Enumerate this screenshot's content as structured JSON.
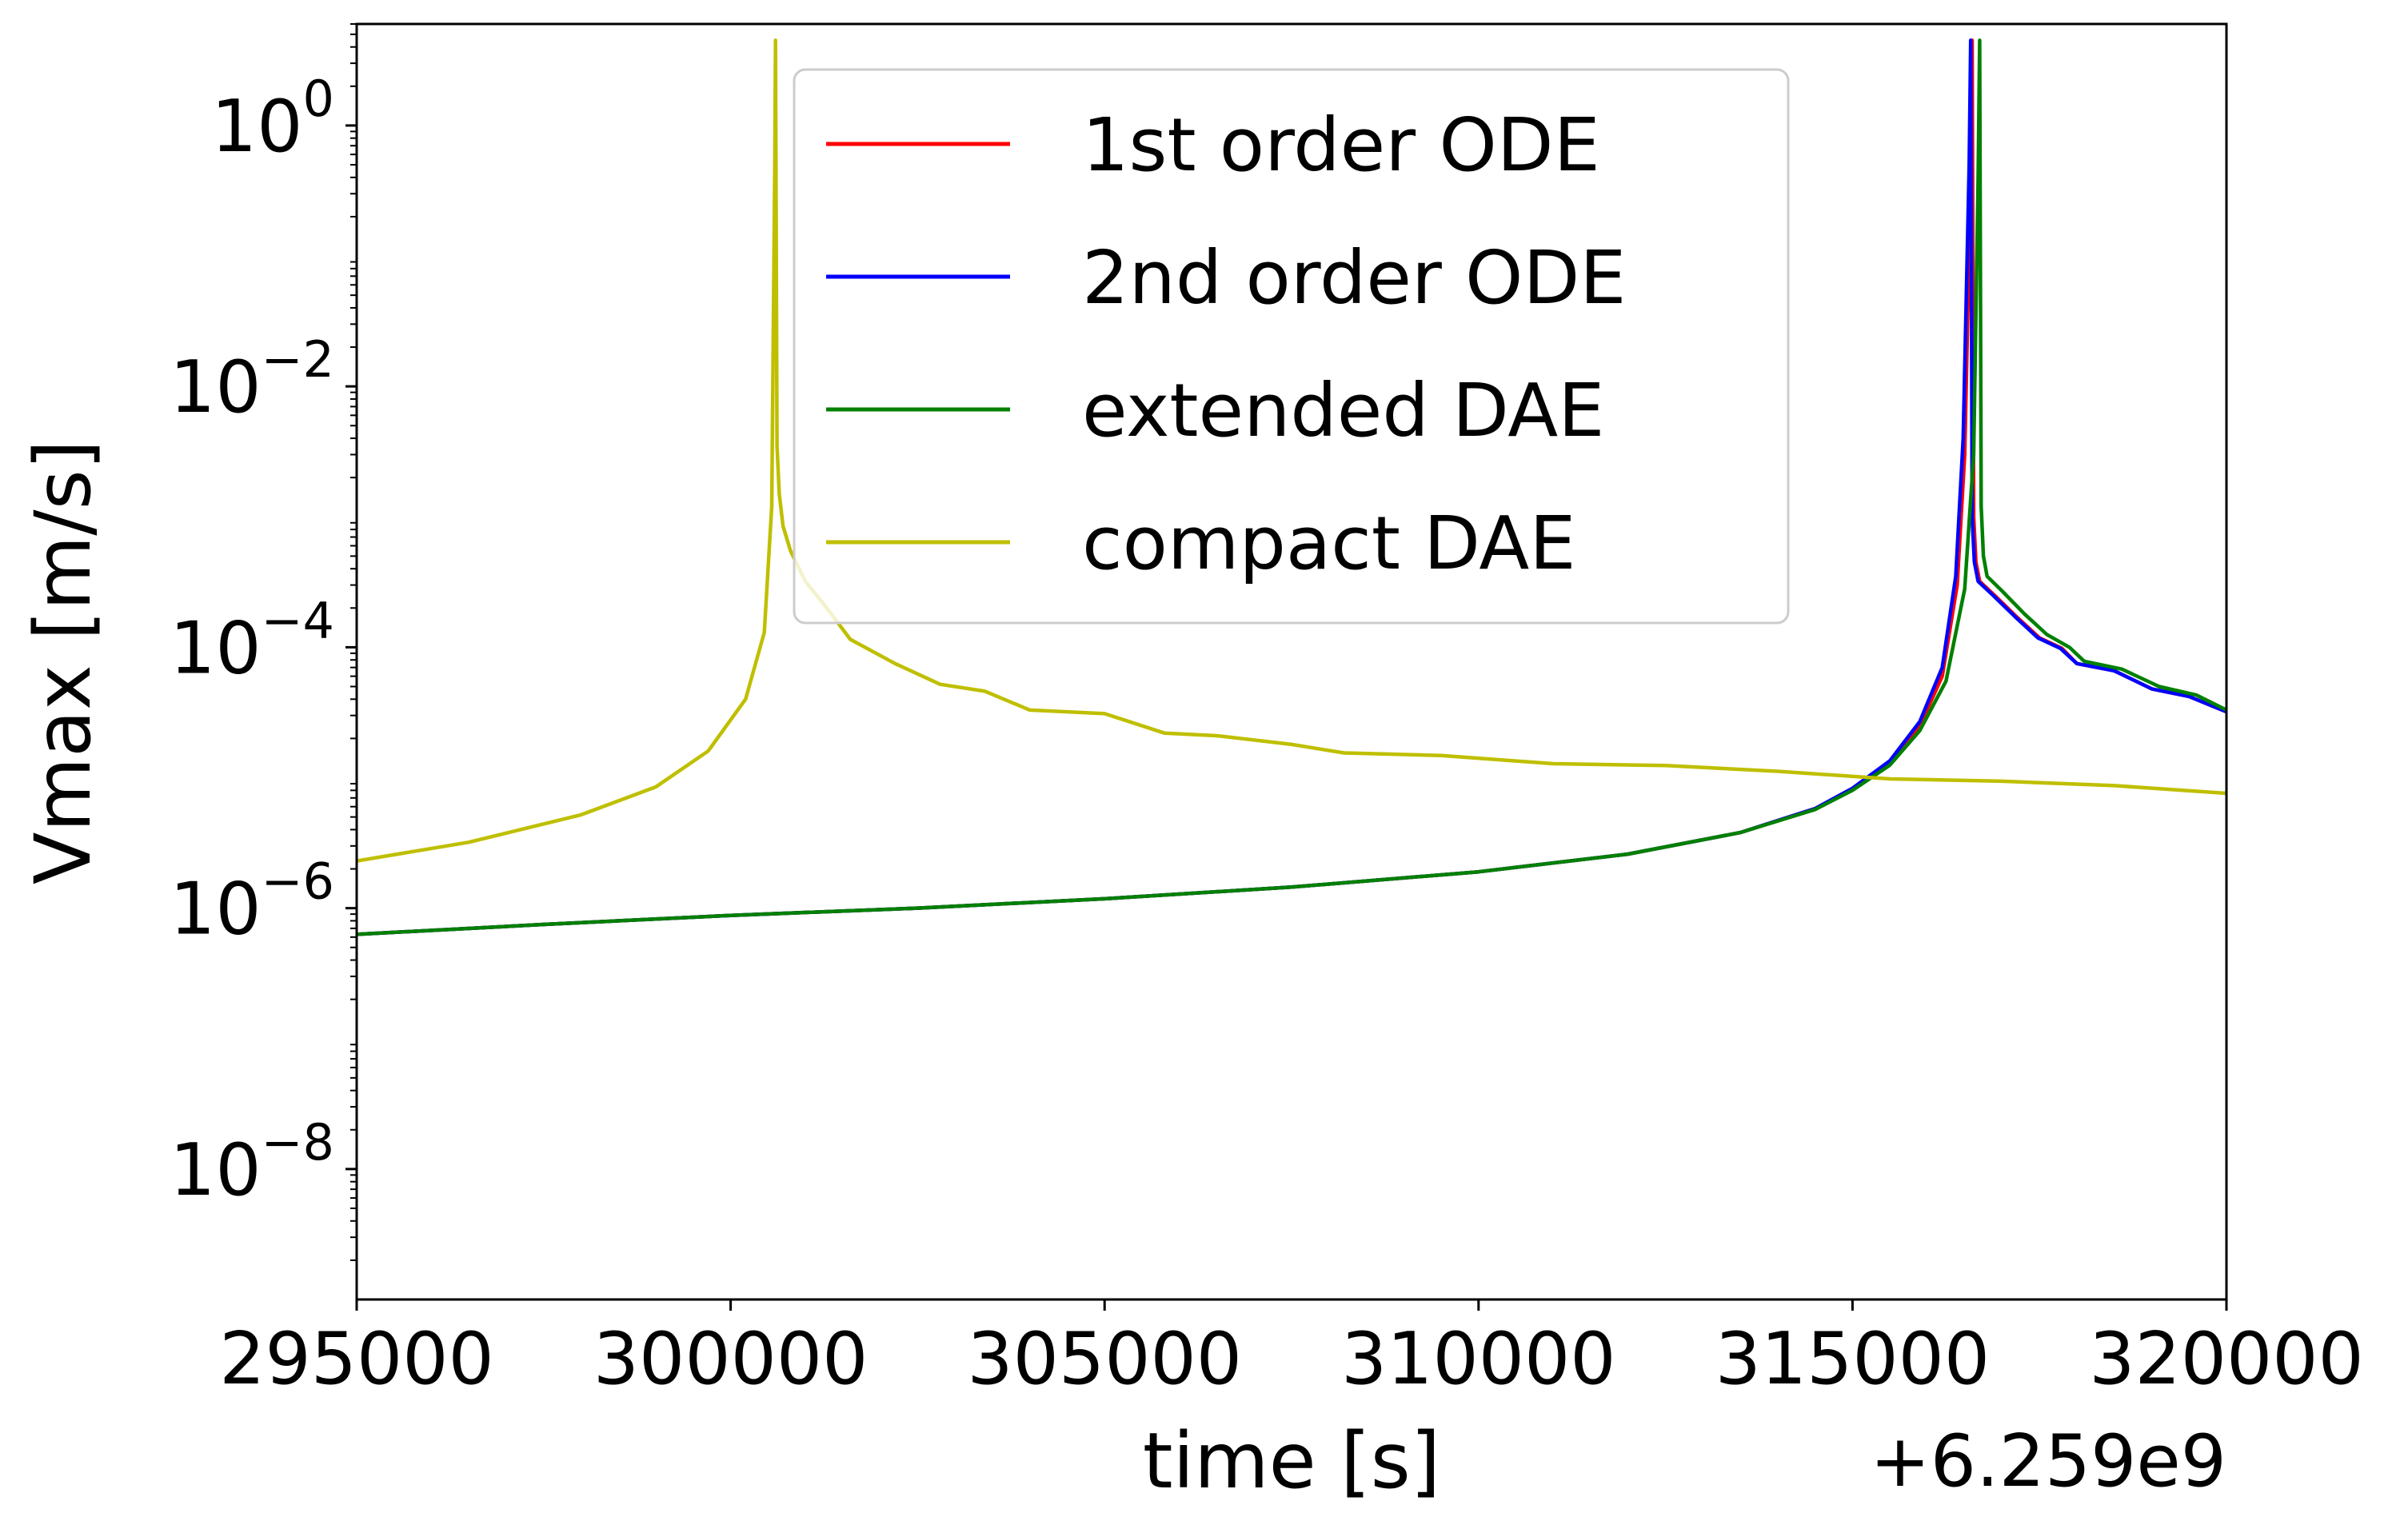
{
  "chart_data": {
    "type": "line",
    "title": "",
    "xlabel": "time [s]",
    "ylabel": "Vmax [m/s]",
    "x_offset_label": "+6.259e9",
    "x_offset": 6259000000,
    "xlim": [
      295000,
      320000
    ],
    "ylim": [
      1e-09,
      6
    ],
    "yscale": "log",
    "grid": false,
    "legend_position": "upper center",
    "x_ticks": [
      {
        "value": 295000,
        "label": "295000"
      },
      {
        "value": 300000,
        "label": "300000"
      },
      {
        "value": 305000,
        "label": "305000"
      },
      {
        "value": 310000,
        "label": "310000"
      },
      {
        "value": 315000,
        "label": "315000"
      },
      {
        "value": 320000,
        "label": "320000"
      }
    ],
    "y_ticks": [
      {
        "value": 1,
        "base": "10",
        "exponent": "0"
      },
      {
        "value": 0.01,
        "base": "10",
        "exponent": "−2"
      },
      {
        "value": 0.0001,
        "base": "10",
        "exponent": "−4"
      },
      {
        "value": 1e-06,
        "base": "10",
        "exponent": "−6"
      },
      {
        "value": 1e-08,
        "base": "10",
        "exponent": "−8"
      }
    ],
    "series": [
      {
        "name": "1st order ODE",
        "color": "#ff0000",
        "x": [
          295000,
          297500,
          300000,
          302500,
          305000,
          307500,
          310000,
          312000,
          313500,
          314500,
          315000,
          315500,
          315900,
          316200,
          316400,
          316500,
          316580,
          316600,
          316620,
          316650,
          316700,
          316900,
          317200,
          317500,
          317800,
          318000,
          318500,
          319000,
          319500,
          320000
        ],
        "y": [
          6.3e-07,
          7.5e-07,
          8.8e-07,
          1e-06,
          1.18e-06,
          1.45e-06,
          1.9e-06,
          2.6e-06,
          3.8e-06,
          5.8e-06,
          8.2e-06,
          1.3e-05,
          2.5e-05,
          6e-05,
          0.0003,
          0.003,
          0.4,
          4.5,
          0.001,
          0.00045,
          0.00032,
          0.00025,
          0.00017,
          0.000118,
          9.8e-05,
          7.5e-05,
          6.6e-05,
          4.8e-05,
          4.2e-05,
          3.2e-05
        ]
      },
      {
        "name": "2nd order ODE",
        "color": "#0000ff",
        "x": [
          295000,
          297500,
          300000,
          302500,
          305000,
          307500,
          310000,
          312000,
          313500,
          314500,
          315000,
          315500,
          315900,
          316200,
          316380,
          316480,
          316560,
          316580,
          316600,
          316630,
          316680,
          316880,
          317180,
          317480,
          317780,
          318000,
          318500,
          319000,
          319500,
          320000
        ],
        "y": [
          6.3e-07,
          7.5e-07,
          8.8e-07,
          1e-06,
          1.18e-06,
          1.45e-06,
          1.9e-06,
          2.6e-06,
          3.8e-06,
          5.8e-06,
          8.3e-06,
          1.35e-05,
          2.7e-05,
          7e-05,
          0.00035,
          0.004,
          0.5,
          4.5,
          0.001,
          0.00045,
          0.00032,
          0.00025,
          0.00017,
          0.000118,
          9.8e-05,
          7.5e-05,
          6.6e-05,
          4.8e-05,
          4.2e-05,
          3.2e-05
        ]
      },
      {
        "name": "extended DAE",
        "color": "#008000",
        "x": [
          295000,
          297500,
          300000,
          302500,
          305000,
          307500,
          310000,
          312000,
          313500,
          314500,
          315000,
          315500,
          315900,
          316250,
          316500,
          316620,
          316680,
          316700,
          316720,
          316750,
          316800,
          317000,
          317300,
          317600,
          317900,
          318100,
          318600,
          319100,
          319600,
          320000
        ],
        "y": [
          6.3e-07,
          7.5e-07,
          8.8e-07,
          1e-06,
          1.18e-06,
          1.45e-06,
          1.9e-06,
          2.6e-06,
          3.8e-06,
          5.7e-06,
          8e-06,
          1.25e-05,
          2.3e-05,
          5.5e-05,
          0.00028,
          0.003,
          0.4,
          4.5,
          0.0012,
          0.0005,
          0.00035,
          0.00027,
          0.00018,
          0.000125,
          0.0001,
          7.8e-05,
          6.8e-05,
          5e-05,
          4.3e-05,
          3.3e-05
        ]
      },
      {
        "name": "compact DAE",
        "color": "#bfbf00",
        "x": [
          295000,
          296500,
          298000,
          299000,
          299700,
          300200,
          300450,
          300550,
          300590,
          300600,
          300620,
          300650,
          300700,
          300800,
          301000,
          301300,
          301600,
          302200,
          302800,
          303400,
          304000,
          305000,
          305800,
          306500,
          307500,
          308200,
          309500,
          311000,
          312500,
          314000,
          315500,
          317000,
          318500,
          320000
        ],
        "y": [
          2.3e-06,
          3.2e-06,
          5.2e-06,
          8.5e-06,
          1.6e-05,
          4e-05,
          0.00013,
          0.0012,
          0.5,
          4.5,
          0.0035,
          0.0015,
          0.00085,
          0.00055,
          0.00032,
          0.000195,
          0.000115,
          7.5e-05,
          5.2e-05,
          4.6e-05,
          3.3e-05,
          3.1e-05,
          2.2e-05,
          2.1e-05,
          1.8e-05,
          1.55e-05,
          1.48e-05,
          1.28e-05,
          1.24e-05,
          1.12e-05,
          9.8e-06,
          9.4e-06,
          8.7e-06,
          7.6e-06
        ]
      }
    ]
  }
}
